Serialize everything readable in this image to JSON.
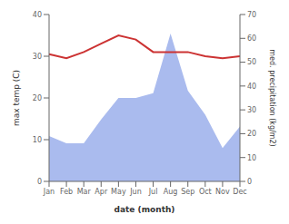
{
  "chart_data": {
    "type": "line",
    "xlabel": "date (month)",
    "ylabel": "max temp (C)",
    "y2label": "med. precipitation (kg/m2)",
    "categories": [
      "Jan",
      "Feb",
      "Mar",
      "Apr",
      "May",
      "Jun",
      "Jul",
      "Aug",
      "Sep",
      "Oct",
      "Nov",
      "Dec"
    ],
    "series": [
      {
        "type": "area",
        "axis": "y2",
        "color": "#aabbee",
        "values": [
          19,
          16,
          16,
          26,
          35,
          35,
          37,
          62,
          38,
          28,
          14,
          23
        ]
      },
      {
        "type": "line",
        "color": "#cc3333",
        "values": [
          30.5,
          29.5,
          31.0,
          33.0,
          35.0,
          34.0,
          31.0,
          31.0,
          31.0,
          30.0,
          29.5,
          30.0
        ]
      }
    ],
    "ylim": [
      0,
      40
    ],
    "yticks": [
      0,
      10,
      20,
      30,
      40
    ],
    "y2lim": [
      0,
      70
    ],
    "y2ticks": [
      0,
      10,
      20,
      30,
      40,
      50,
      60,
      70
    ],
    "grid": false
  }
}
